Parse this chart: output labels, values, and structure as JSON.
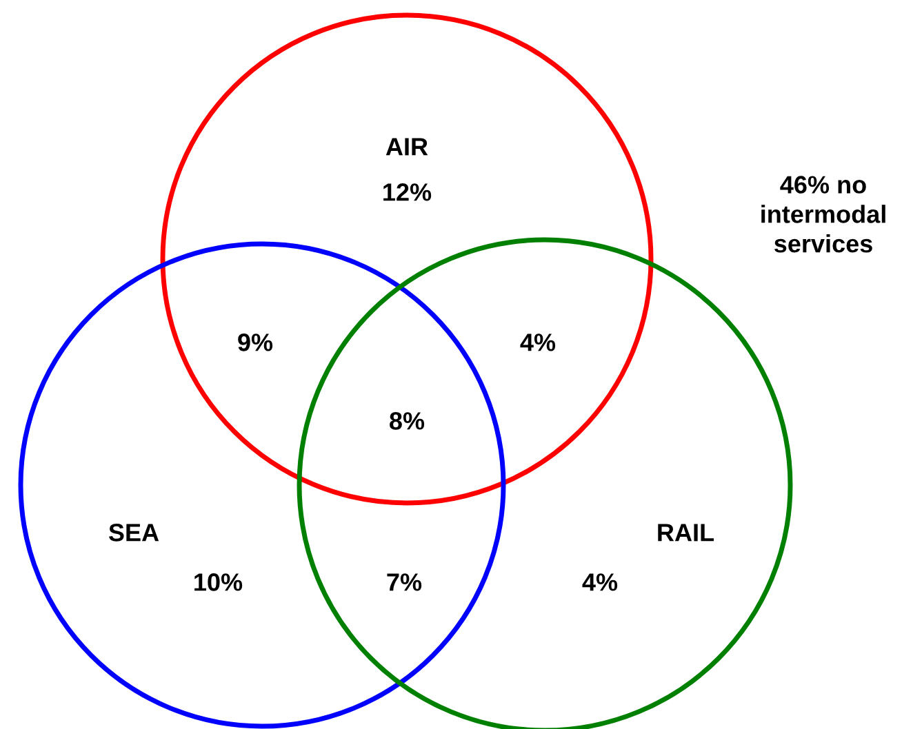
{
  "chart_data": {
    "type": "other",
    "categories": [
      "AIR",
      "SEA",
      "RAIL"
    ],
    "values": [
      12,
      10,
      4
    ],
    "data_labels": true,
    "value_labels": [
      "12%",
      "10%",
      "4%"
    ],
    "colors": [
      "#ff0000",
      "#0000ff",
      "#008000"
    ],
    "annotations": [
      "9%",
      "4%",
      "8%",
      "7%",
      "46% no\nintermodal\nservices"
    ]
  }
}
